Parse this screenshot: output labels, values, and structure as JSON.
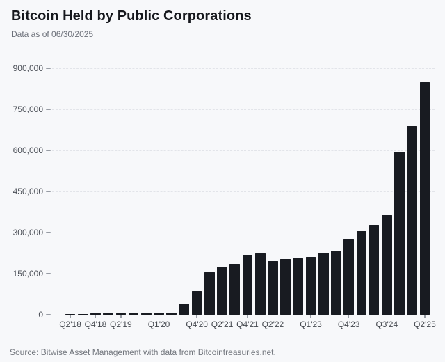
{
  "header": {
    "title": "Bitcoin Held by Public Corporations",
    "subtitle": "Data as of 06/30/2025"
  },
  "footer": {
    "source": "Source: Bitwise Asset Management with data from Bitcointreasuries.net."
  },
  "colors": {
    "background": "#f7f8fa",
    "bar": "#181b21",
    "title_text": "#16181d",
    "subtitle_text": "#6d717a",
    "axis_label": "#4b4f57",
    "gridline": "#e2e4e9",
    "tick_mark": "#979ca4",
    "source_text": "#73777e"
  },
  "chart_data": {
    "type": "bar",
    "title": "Bitcoin Held by Public Corporations",
    "subtitle": "Data as of 06/30/2025",
    "xlabel": "",
    "ylabel": "",
    "ylim": [
      0,
      900000
    ],
    "grid": "horizontal-dashed",
    "legend": "none",
    "categories": [
      "Q2'18",
      "Q3'18",
      "Q4'18",
      "Q1'19",
      "Q2'19",
      "Q3'19",
      "Q4'19",
      "Q1'20",
      "Q2'20",
      "Q3'20",
      "Q4'20",
      "Q1'21",
      "Q2'21",
      "Q3'21",
      "Q4'21",
      "Q1'22",
      "Q2'22",
      "Q3'22",
      "Q4'22",
      "Q1'23",
      "Q2'23",
      "Q3'23",
      "Q4'23",
      "Q1'24",
      "Q2'24",
      "Q3'24",
      "Q4'24",
      "Q1'25",
      "Q2'25"
    ],
    "values": [
      3000,
      3500,
      4000,
      4500,
      5000,
      5500,
      6000,
      6500,
      7500,
      41000,
      86000,
      155000,
      175000,
      186000,
      217000,
      225000,
      196000,
      203000,
      207000,
      211000,
      227000,
      234000,
      274000,
      306000,
      327000,
      363000,
      594000,
      689000,
      848000
    ],
    "y_ticks": [
      0,
      150000,
      300000,
      450000,
      600000,
      750000,
      900000
    ],
    "y_tick_labels": [
      "0",
      "150,000",
      "300,000",
      "450,000",
      "600,000",
      "750,000",
      "900,000"
    ],
    "x_tick_labels": [
      "Q2'18",
      "Q4'18",
      "Q2'19",
      "Q1'20",
      "Q4'20",
      "Q2'21",
      "Q4'21",
      "Q2'22",
      "Q1'23",
      "Q4'23",
      "Q3'24",
      "Q2'25"
    ],
    "x_tick_indices": [
      0,
      2,
      4,
      7,
      10,
      12,
      14,
      16,
      19,
      22,
      25,
      28
    ]
  }
}
